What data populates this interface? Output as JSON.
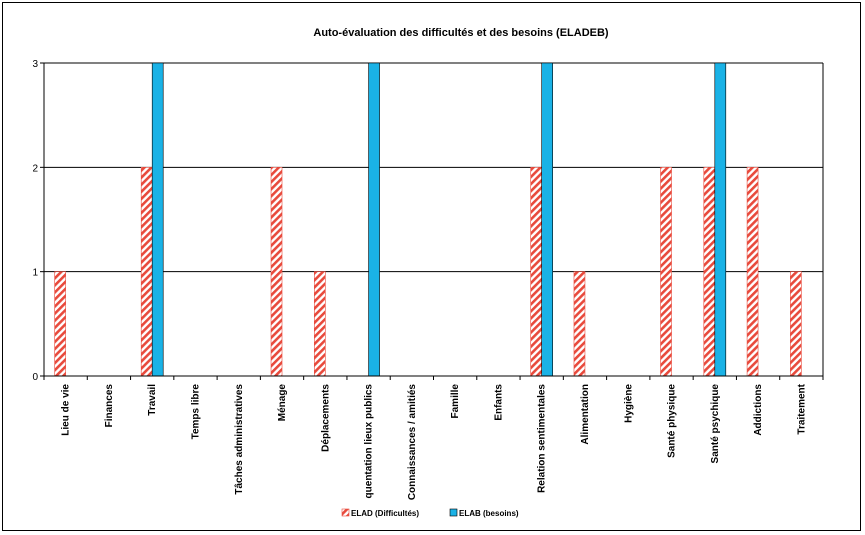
{
  "chart_data": {
    "type": "bar",
    "title": "Auto-évaluation des difficultés et des besoins (ELADEB)",
    "xlabel": "",
    "ylabel": "",
    "ylim": [
      0,
      3
    ],
    "yticks": [
      0,
      1,
      2,
      3
    ],
    "grid": true,
    "legend_position": "bottom",
    "categories": [
      "Lieu de vie",
      "Finances",
      "Travail",
      "Temps libre",
      "Tâches administratives",
      "Ménage",
      "Déplacements",
      "quentation lieux publics",
      "Connaissances / amitiés",
      "Famille",
      "Enfants",
      "Relation sentimentales",
      "Alimentation",
      "Hygiène",
      "Santé physique",
      "Santé psychique",
      "Addictions",
      "Traitement"
    ],
    "series": [
      {
        "name": "ELAD (Difficultés)",
        "pattern": "hatched",
        "color": "#e84a3c",
        "values": [
          1,
          0,
          2,
          0,
          0,
          2,
          1,
          0,
          0,
          0,
          0,
          2,
          1,
          0,
          2,
          2,
          2,
          1
        ]
      },
      {
        "name": "ELAB (besoins)",
        "pattern": "solid",
        "color": "#1ab2e6",
        "values": [
          0,
          0,
          3,
          0,
          0,
          0,
          0,
          3,
          0,
          0,
          0,
          3,
          0,
          0,
          0,
          3,
          0,
          0
        ]
      }
    ]
  }
}
